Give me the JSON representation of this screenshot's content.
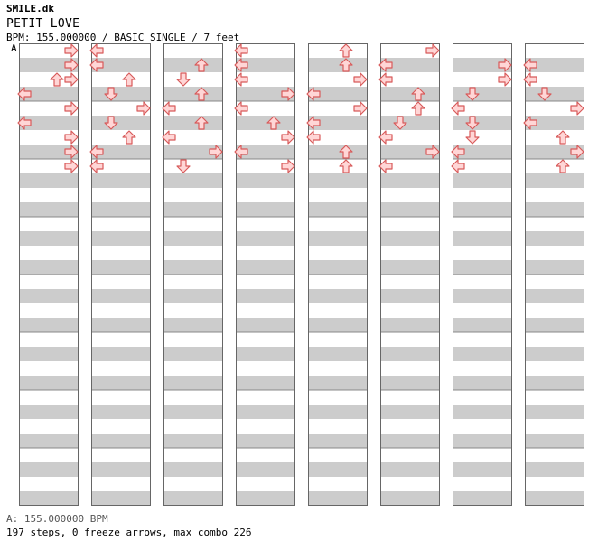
{
  "header": {
    "site": "SMILE.dk",
    "song_title": "PETIT LOVE",
    "meta": "BPM: 155.000000 / BASIC SINGLE / 7 feet",
    "bpm_marker": "A"
  },
  "footer": {
    "bpm_line": "A: 155.000000 BPM",
    "stats_line": "197 steps, 0 freeze arrows, max combo 226"
  },
  "colors": {
    "stripe": "#cccccc",
    "arrow_fill": "#ffd6d6",
    "arrow_stroke": "#d85a5a",
    "frame": "#666666"
  },
  "chart_data": {
    "type": "step-chart",
    "columns": 8,
    "measures_per_column": 8,
    "rows_per_measure": 4,
    "notes": [
      [
        1,
        0,
        "R"
      ],
      [
        1,
        1,
        "L"
      ],
      [
        1,
        3,
        "L"
      ],
      [
        1,
        4,
        "U"
      ],
      [
        1,
        5,
        "R"
      ],
      [
        2,
        0,
        "R"
      ],
      [
        2,
        1,
        "L"
      ],
      [
        2,
        2,
        "U"
      ],
      [
        2,
        3,
        "L"
      ],
      [
        2,
        4,
        "U"
      ],
      [
        2,
        5,
        "L"
      ],
      [
        2,
        6,
        "R"
      ],
      [
        2,
        7,
        "L"
      ],
      [
        3,
        0,
        "R"
      ],
      [
        3,
        0,
        "U"
      ],
      [
        3,
        1,
        "U"
      ],
      [
        3,
        2,
        "D"
      ],
      [
        3,
        3,
        "L"
      ],
      [
        3,
        4,
        "R"
      ],
      [
        3,
        5,
        "L"
      ],
      [
        3,
        6,
        "R"
      ],
      [
        3,
        7,
        "L"
      ],
      [
        4,
        0,
        "L"
      ],
      [
        4,
        1,
        "D"
      ],
      [
        4,
        2,
        "U"
      ],
      [
        4,
        3,
        "R"
      ],
      [
        4,
        4,
        "L"
      ],
      [
        4,
        5,
        "U"
      ],
      [
        4,
        6,
        "D"
      ],
      [
        4,
        7,
        "D"
      ],
      [
        5,
        0,
        "R"
      ],
      [
        5,
        1,
        "R"
      ],
      [
        5,
        2,
        "L"
      ],
      [
        5,
        3,
        "L"
      ],
      [
        5,
        4,
        "R"
      ],
      [
        5,
        5,
        "U"
      ],
      [
        5,
        6,
        "L"
      ],
      [
        5,
        7,
        "R"
      ],
      [
        6,
        0,
        "L"
      ],
      [
        6,
        1,
        "D"
      ],
      [
        6,
        2,
        "U"
      ],
      [
        6,
        3,
        "U"
      ],
      [
        6,
        4,
        "L"
      ],
      [
        6,
        5,
        "D"
      ],
      [
        6,
        6,
        "D"
      ],
      [
        6,
        7,
        "L"
      ],
      [
        7,
        0,
        "R"
      ],
      [
        7,
        1,
        "U"
      ],
      [
        7,
        2,
        "L"
      ],
      [
        7,
        3,
        "R"
      ],
      [
        7,
        4,
        "L"
      ],
      [
        7,
        5,
        "L"
      ],
      [
        7,
        6,
        "D"
      ],
      [
        7,
        7,
        "U"
      ],
      [
        8,
        0,
        "R"
      ],
      [
        8,
        1,
        "L"
      ],
      [
        8,
        2,
        "R"
      ],
      [
        8,
        3,
        "L"
      ],
      [
        8,
        4,
        "U"
      ],
      [
        8,
        5,
        "R"
      ],
      [
        8,
        6,
        "L"
      ],
      [
        8,
        7,
        "R"
      ],
      [
        9,
        0,
        "R"
      ],
      [
        9,
        1,
        "L"
      ],
      [
        9,
        2,
        "D"
      ],
      [
        9,
        3,
        "R"
      ],
      [
        9,
        4,
        "U"
      ],
      [
        9,
        5,
        "L"
      ],
      [
        9,
        6,
        "L"
      ],
      [
        9,
        7,
        "U"
      ]
    ]
  }
}
